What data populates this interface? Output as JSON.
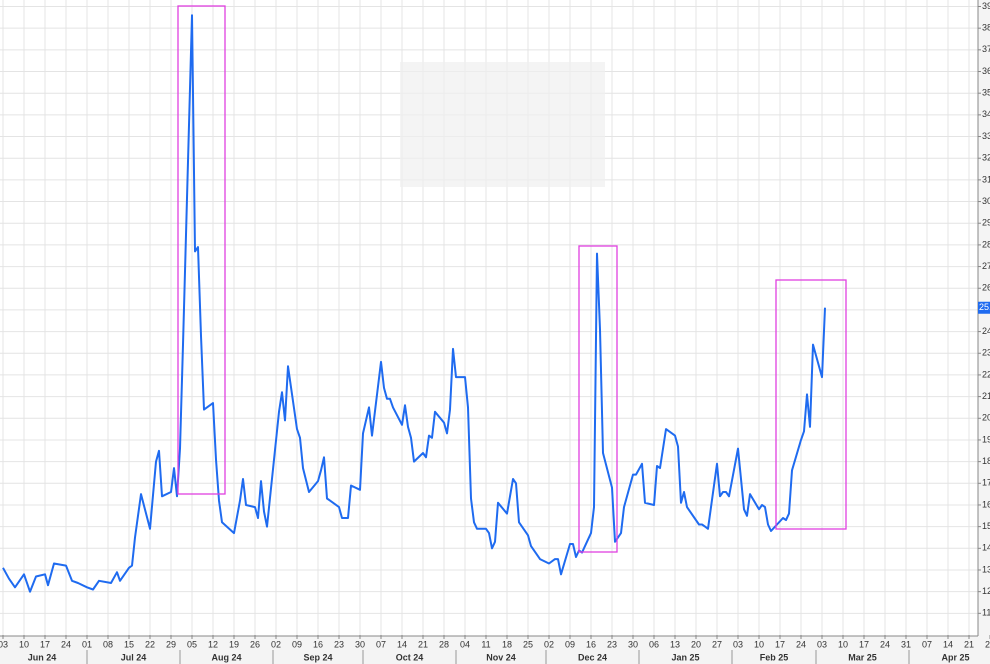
{
  "chart_data": {
    "type": "line",
    "x": [
      "2024-06-03",
      "2024-06-05",
      "2024-06-07",
      "2024-06-10",
      "2024-06-12",
      "2024-06-14",
      "2024-06-17",
      "2024-06-18",
      "2024-06-20",
      "2024-06-24",
      "2024-06-26",
      "2024-06-28",
      "2024-07-01",
      "2024-07-03",
      "2024-07-05",
      "2024-07-09",
      "2024-07-11",
      "2024-07-12",
      "2024-07-15",
      "2024-07-16",
      "2024-07-17",
      "2024-07-19",
      "2024-07-22",
      "2024-07-24",
      "2024-07-25",
      "2024-07-26",
      "2024-07-29",
      "2024-07-30",
      "2024-07-31",
      "2024-08-01",
      "2024-08-02",
      "2024-08-05",
      "2024-08-06",
      "2024-08-07",
      "2024-08-08",
      "2024-08-09",
      "2024-08-12",
      "2024-08-13",
      "2024-08-14",
      "2024-08-15",
      "2024-08-19",
      "2024-08-21",
      "2024-08-22",
      "2024-08-23",
      "2024-08-26",
      "2024-08-27",
      "2024-08-28",
      "2024-08-29",
      "2024-08-30",
      "2024-09-03",
      "2024-09-04",
      "2024-09-05",
      "2024-09-06",
      "2024-09-09",
      "2024-09-10",
      "2024-09-11",
      "2024-09-13",
      "2024-09-16",
      "2024-09-17",
      "2024-09-18",
      "2024-09-19",
      "2024-09-20",
      "2024-09-23",
      "2024-09-24",
      "2024-09-26",
      "2024-09-27",
      "2024-09-30",
      "2024-10-01",
      "2024-10-03",
      "2024-10-04",
      "2024-10-07",
      "2024-10-08",
      "2024-10-09",
      "2024-10-10",
      "2024-10-11",
      "2024-10-14",
      "2024-10-15",
      "2024-10-16",
      "2024-10-17",
      "2024-10-18",
      "2024-10-21",
      "2024-10-22",
      "2024-10-23",
      "2024-10-24",
      "2024-10-25",
      "2024-10-28",
      "2024-10-29",
      "2024-10-30",
      "2024-10-31",
      "2024-11-01",
      "2024-11-04",
      "2024-11-05",
      "2024-11-06",
      "2024-11-07",
      "2024-11-08",
      "2024-11-11",
      "2024-11-12",
      "2024-11-13",
      "2024-11-14",
      "2024-11-15",
      "2024-11-18",
      "2024-11-19",
      "2024-11-20",
      "2024-11-21",
      "2024-11-22",
      "2024-11-25",
      "2024-11-26",
      "2024-11-29",
      "2024-12-02",
      "2024-12-04",
      "2024-12-05",
      "2024-12-06",
      "2024-12-09",
      "2024-12-10",
      "2024-12-11",
      "2024-12-12",
      "2024-12-13",
      "2024-12-16",
      "2024-12-17",
      "2024-12-18",
      "2024-12-19",
      "2024-12-20",
      "2024-12-23",
      "2024-12-24",
      "2024-12-26",
      "2024-12-27",
      "2024-12-30",
      "2024-12-31",
      "2025-01-02",
      "2025-01-03",
      "2025-01-06",
      "2025-01-07",
      "2025-01-08",
      "2025-01-10",
      "2025-01-13",
      "2025-01-14",
      "2025-01-15",
      "2025-01-16",
      "2025-01-17",
      "2025-01-21",
      "2025-01-22",
      "2025-01-23",
      "2025-01-24",
      "2025-01-27",
      "2025-01-28",
      "2025-01-29",
      "2025-01-30",
      "2025-01-31",
      "2025-02-03",
      "2025-02-04",
      "2025-02-05",
      "2025-02-06",
      "2025-02-07",
      "2025-02-10",
      "2025-02-11",
      "2025-02-12",
      "2025-02-13",
      "2025-02-14",
      "2025-02-18",
      "2025-02-19",
      "2025-02-20",
      "2025-02-21",
      "2025-02-24",
      "2025-02-25",
      "2025-02-26",
      "2025-02-27",
      "2025-02-28",
      "2025-03-03",
      "2025-03-04"
    ],
    "series": [
      {
        "color": "#1f6bf0",
        "values": [
          13.1,
          12.6,
          12.2,
          12.8,
          12.0,
          12.7,
          12.8,
          12.3,
          13.3,
          13.2,
          12.5,
          12.4,
          12.2,
          12.1,
          12.5,
          12.4,
          12.9,
          12.5,
          13.1,
          13.2,
          14.5,
          16.5,
          14.9,
          18.0,
          18.5,
          16.4,
          16.6,
          17.7,
          16.4,
          18.6,
          23.4,
          38.6,
          27.7,
          27.9,
          23.8,
          20.4,
          20.7,
          18.1,
          16.2,
          15.2,
          14.7,
          16.2,
          17.2,
          16.0,
          15.9,
          15.4,
          17.1,
          15.7,
          15.0,
          20.3,
          21.2,
          19.9,
          22.4,
          19.5,
          19.1,
          17.7,
          16.6,
          17.1,
          17.6,
          18.2,
          16.3,
          16.2,
          15.9,
          15.4,
          15.4,
          16.9,
          16.7,
          19.3,
          20.5,
          19.2,
          22.6,
          21.4,
          20.9,
          20.9,
          20.5,
          19.7,
          20.6,
          19.6,
          19.1,
          18.0,
          18.4,
          18.2,
          19.2,
          19.1,
          20.3,
          19.8,
          19.3,
          20.4,
          23.2,
          21.9,
          21.9,
          20.5,
          16.3,
          15.2,
          14.9,
          14.9,
          14.7,
          14.0,
          14.3,
          16.1,
          15.6,
          16.4,
          17.2,
          17.0,
          15.2,
          14.6,
          14.1,
          13.5,
          13.3,
          13.5,
          13.5,
          12.8,
          14.2,
          14.2,
          13.6,
          13.9,
          13.8,
          14.7,
          15.9,
          27.6,
          24.1,
          18.4,
          16.8,
          14.3,
          14.7,
          15.9,
          17.4,
          17.4,
          17.9,
          16.1,
          16.0,
          17.8,
          17.7,
          19.5,
          19.2,
          18.7,
          16.1,
          16.6,
          15.9,
          15.1,
          15.1,
          15.0,
          14.9,
          17.9,
          16.4,
          16.6,
          16.6,
          16.4,
          18.6,
          17.2,
          15.8,
          15.5,
          16.5,
          15.8,
          16.0,
          15.9,
          15.1,
          14.8,
          15.4,
          15.3,
          15.6,
          17.6,
          19.0,
          19.4,
          21.1,
          19.6,
          23.4,
          21.9,
          25.1
        ]
      }
    ],
    "xlim": [
      "2024-06-02",
      "2025-04-29"
    ],
    "xticks": [
      {
        "value": "2024-06-03",
        "label": "03"
      },
      {
        "value": "2024-06-10",
        "label": "10"
      },
      {
        "value": "2024-06-17",
        "label": "17"
      },
      {
        "value": "2024-06-24",
        "label": "24"
      },
      {
        "value": "2024-07-01",
        "label": "01"
      },
      {
        "value": "2024-07-08",
        "label": "08"
      },
      {
        "value": "2024-07-15",
        "label": "15"
      },
      {
        "value": "2024-07-22",
        "label": "22"
      },
      {
        "value": "2024-07-29",
        "label": "29"
      },
      {
        "value": "2024-08-05",
        "label": "05"
      },
      {
        "value": "2024-08-12",
        "label": "12"
      },
      {
        "value": "2024-08-19",
        "label": "19"
      },
      {
        "value": "2024-08-26",
        "label": "26"
      },
      {
        "value": "2024-09-02",
        "label": "02"
      },
      {
        "value": "2024-09-09",
        "label": "09"
      },
      {
        "value": "2024-09-16",
        "label": "16"
      },
      {
        "value": "2024-09-23",
        "label": "23"
      },
      {
        "value": "2024-09-30",
        "label": "30"
      },
      {
        "value": "2024-10-07",
        "label": "07"
      },
      {
        "value": "2024-10-14",
        "label": "14"
      },
      {
        "value": "2024-10-21",
        "label": "21"
      },
      {
        "value": "2024-10-28",
        "label": "28"
      },
      {
        "value": "2024-11-04",
        "label": "04"
      },
      {
        "value": "2024-11-11",
        "label": "11"
      },
      {
        "value": "2024-11-18",
        "label": "18"
      },
      {
        "value": "2024-11-25",
        "label": "25"
      },
      {
        "value": "2024-12-02",
        "label": "02"
      },
      {
        "value": "2024-12-09",
        "label": "09"
      },
      {
        "value": "2024-12-16",
        "label": "16"
      },
      {
        "value": "2024-12-23",
        "label": "23"
      },
      {
        "value": "2024-12-30",
        "label": "30"
      },
      {
        "value": "2025-01-06",
        "label": "06"
      },
      {
        "value": "2025-01-13",
        "label": "13"
      },
      {
        "value": "2025-01-20",
        "label": "20"
      },
      {
        "value": "2025-01-27",
        "label": "27"
      },
      {
        "value": "2025-02-03",
        "label": "03"
      },
      {
        "value": "2025-02-10",
        "label": "10"
      },
      {
        "value": "2025-02-17",
        "label": "17"
      },
      {
        "value": "2025-02-24",
        "label": "24"
      },
      {
        "value": "2025-03-03",
        "label": "03"
      },
      {
        "value": "2025-03-10",
        "label": "10"
      },
      {
        "value": "2025-03-17",
        "label": "17"
      },
      {
        "value": "2025-03-24",
        "label": "24"
      },
      {
        "value": "2025-03-31",
        "label": "31"
      },
      {
        "value": "2025-04-07",
        "label": "07"
      },
      {
        "value": "2025-04-14",
        "label": "14"
      },
      {
        "value": "2025-04-21",
        "label": "21"
      },
      {
        "value": "2025-04-28",
        "label": "28"
      }
    ],
    "month_ticks": [
      {
        "value": "2024-06-01",
        "label": "Jun 24"
      },
      {
        "value": "2024-07-01",
        "label": "Jul 24"
      },
      {
        "value": "2024-08-01",
        "label": "Aug 24"
      },
      {
        "value": "2024-09-01",
        "label": "Sep 24"
      },
      {
        "value": "2024-10-01",
        "label": "Oct 24"
      },
      {
        "value": "2024-11-01",
        "label": "Nov 24"
      },
      {
        "value": "2024-12-01",
        "label": "Dec 24"
      },
      {
        "value": "2025-01-01",
        "label": "Jan 25"
      },
      {
        "value": "2025-02-01",
        "label": "Feb 25"
      },
      {
        "value": "2025-03-01",
        "label": "Mar 25"
      },
      {
        "value": "2025-04-01",
        "label": "Apr 25"
      }
    ],
    "ylim": [
      10,
      39.3
    ],
    "yticks": [
      11,
      12,
      13,
      14,
      15,
      16,
      17,
      18,
      19,
      20,
      21,
      22,
      23,
      24,
      25,
      26,
      27,
      28,
      29,
      30,
      31,
      32,
      33,
      34,
      35,
      36,
      37,
      38,
      39
    ],
    "grid": true
  }
}
